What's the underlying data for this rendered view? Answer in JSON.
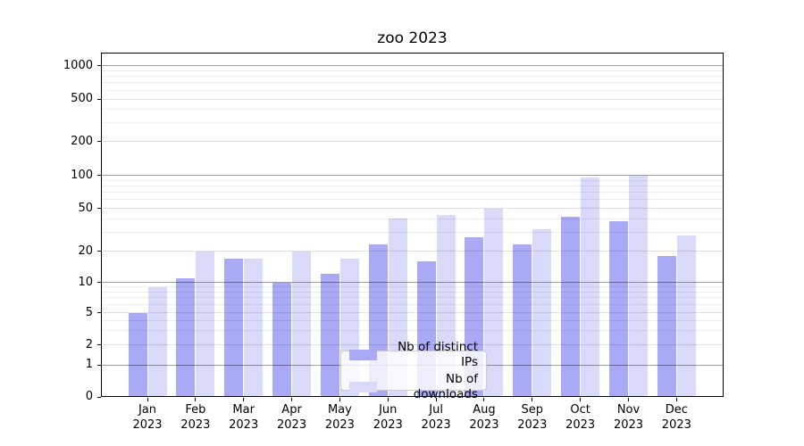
{
  "chart_data": {
    "type": "bar",
    "title": "zoo 2023",
    "categories": [
      "Jan",
      "Feb",
      "Mar",
      "Apr",
      "May",
      "Jun",
      "Jul",
      "Aug",
      "Sep",
      "Oct",
      "Nov",
      "Dec"
    ],
    "category_year": "2023",
    "series": [
      {
        "name": "Nb of distinct IPs",
        "color": "#a9a9f6",
        "values": [
          5,
          11,
          17,
          10,
          12,
          23,
          16,
          27,
          23,
          42,
          38,
          18
        ]
      },
      {
        "name": "Nb of downloads",
        "color": "#d9d9fa",
        "values": [
          9,
          20,
          17,
          20,
          17,
          40,
          43,
          50,
          32,
          95,
          100,
          28
        ]
      }
    ],
    "xlabel": "",
    "ylabel": "",
    "yticks": [
      0,
      1,
      2,
      5,
      10,
      20,
      50,
      100,
      200,
      500,
      1000
    ],
    "yscale": "symlog",
    "ylim": [
      0,
      1400
    ],
    "grid": true,
    "grid_minor": true,
    "legend_position": "lower center",
    "background_color": "#ffffff",
    "text_color": "#000000"
  }
}
